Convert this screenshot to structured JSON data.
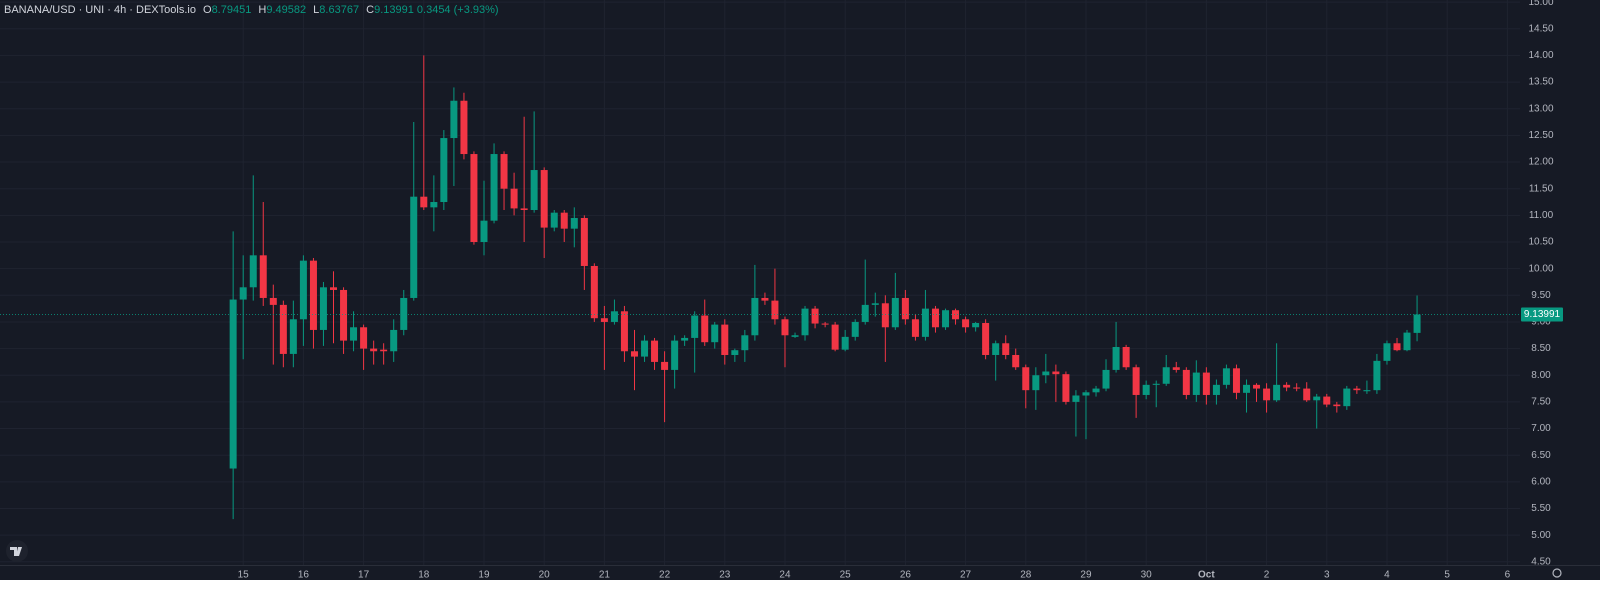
{
  "chart_data": {
    "type": "candlestick",
    "title": "BANANA/USD · UNI · 4h · DEXTools.io",
    "ohlc_letters": [
      "O",
      "H",
      "L",
      "C"
    ],
    "change": 0.3454,
    "change_percent_label": "(+3.93%)",
    "up_color": "#089981",
    "down_color": "#f23645",
    "grid": true,
    "xlim": [
      10.96,
      36.21
    ],
    "ylim": [
      4.44,
      15.04
    ],
    "xticks": [
      15,
      16,
      17,
      18,
      19,
      20,
      21,
      22,
      23,
      24,
      25,
      26,
      27,
      28,
      29,
      30,
      {
        "value": 31,
        "label": "Oct"
      },
      {
        "value": 32,
        "label": "2"
      },
      {
        "value": 33,
        "label": "3"
      },
      {
        "value": 34,
        "label": "4"
      },
      {
        "value": 35,
        "label": "5"
      },
      {
        "value": 36,
        "label": "6"
      }
    ],
    "yticks": [
      {
        "value": 4.5,
        "label": "4.50"
      },
      {
        "value": 5,
        "label": "5.00"
      },
      {
        "value": 5.5,
        "label": "5.50"
      },
      {
        "value": 6,
        "label": "6.00"
      },
      {
        "value": 6.5,
        "label": "6.50"
      },
      {
        "value": 7,
        "label": "7.00"
      },
      {
        "value": 7.5,
        "label": "7.50"
      },
      {
        "value": 8,
        "label": "8.00"
      },
      {
        "value": 8.5,
        "label": "8.50"
      },
      {
        "value": 9,
        "label": "9.00"
      },
      {
        "value": 9.5,
        "label": "9.50"
      },
      {
        "value": 10,
        "label": "10.00"
      },
      {
        "value": 10.5,
        "label": "10.50"
      },
      {
        "value": 11,
        "label": "11.00"
      },
      {
        "value": 11.5,
        "label": "11.50"
      },
      {
        "value": 12,
        "label": "12.00"
      },
      {
        "value": 12.5,
        "label": "12.50"
      },
      {
        "value": 13,
        "label": "13.00"
      },
      {
        "value": 13.5,
        "label": "13.50"
      },
      {
        "value": 14,
        "label": "14.00"
      },
      {
        "value": 14.5,
        "label": "14.50"
      },
      {
        "value": 15,
        "label": "15.00"
      }
    ],
    "x": [
      14.833,
      15,
      15.167,
      15.333,
      15.5,
      15.667,
      15.833,
      16,
      16.167,
      16.333,
      16.5,
      16.667,
      16.833,
      17,
      17.167,
      17.333,
      17.5,
      17.667,
      17.833,
      18,
      18.167,
      18.333,
      18.5,
      18.667,
      18.833,
      19,
      19.167,
      19.333,
      19.5,
      19.667,
      19.833,
      20,
      20.167,
      20.333,
      20.5,
      20.667,
      20.833,
      21,
      21.167,
      21.333,
      21.5,
      21.667,
      21.833,
      22,
      22.167,
      22.333,
      22.5,
      22.667,
      22.833,
      23,
      23.167,
      23.333,
      23.5,
      23.667,
      23.833,
      24,
      24.167,
      24.333,
      24.5,
      24.667,
      24.833,
      25,
      25.167,
      25.333,
      25.5,
      25.667,
      25.833,
      26,
      26.167,
      26.333,
      26.5,
      26.667,
      26.833,
      27,
      27.167,
      27.333,
      27.5,
      27.667,
      27.833,
      28,
      28.167,
      28.333,
      28.5,
      28.667,
      28.833,
      29,
      29.167,
      29.333,
      29.5,
      29.667,
      29.833,
      30,
      30.167,
      30.333,
      30.5,
      30.667,
      30.833,
      31,
      31.167,
      31.333,
      31.5,
      31.667,
      31.833,
      32,
      32.167,
      32.333,
      32.5,
      32.667,
      32.833,
      33,
      33.167,
      33.333,
      33.5,
      33.667,
      33.833,
      34,
      34.167,
      34.333,
      34.5
    ],
    "open": [
      6.25,
      9.42,
      9.65,
      10.25,
      9.45,
      9.32,
      8.4,
      9.05,
      10.15,
      8.85,
      9.65,
      9.6,
      8.65,
      8.9,
      8.5,
      8.48,
      8.45,
      8.85,
      9.45,
      11.35,
      11.15,
      11.25,
      12.45,
      13.15,
      12.15,
      10.5,
      10.9,
      12.15,
      11.5,
      11.13,
      11.1,
      11.85,
      10.77,
      11.05,
      10.75,
      10.95,
      10.05,
      9.07,
      9.0,
      9.2,
      8.45,
      8.35,
      8.65,
      8.25,
      8.1,
      8.65,
      8.7,
      9.12,
      8.62,
      8.95,
      8.38,
      8.47,
      8.75,
      9.45,
      9.4,
      9.05,
      8.72,
      8.75,
      9.25,
      8.97,
      8.95,
      8.48,
      8.72,
      9.0,
      9.32,
      9.35,
      8.9,
      9.45,
      9.05,
      8.72,
      9.25,
      8.9,
      9.22,
      9.05,
      8.9,
      8.98,
      8.38,
      8.6,
      8.38,
      8.15,
      7.72,
      8.0,
      8.07,
      8.02,
      7.5,
      7.62,
      7.68,
      7.75,
      8.1,
      8.53,
      8.15,
      7.63,
      7.82,
      7.84,
      8.15,
      8.1,
      7.63,
      8.05,
      7.63,
      7.82,
      8.13,
      7.67,
      7.82,
      7.75,
      7.53,
      7.82,
      7.77,
      7.75,
      7.53,
      7.6,
      7.45,
      7.42,
      7.75,
      7.7,
      7.72,
      8.27,
      8.6,
      8.47,
      8.79451
    ],
    "high": [
      10.7,
      10.25,
      11.75,
      11.25,
      9.7,
      9.4,
      9.4,
      10.25,
      10.2,
      9.75,
      9.95,
      9.65,
      9.2,
      8.95,
      8.65,
      8.6,
      9.05,
      9.6,
      12.75,
      14,
      11.75,
      12.6,
      13.4,
      13.3,
      12.2,
      11.65,
      12.35,
      12.2,
      11.8,
      12.85,
      12.95,
      11.9,
      11.1,
      11.1,
      11.15,
      11.0,
      10.1,
      9.3,
      9.42,
      9.3,
      8.85,
      8.75,
      8.7,
      8.45,
      8.75,
      8.75,
      9.2,
      9.42,
      9.0,
      9.05,
      8.5,
      8.85,
      10.07,
      9.55,
      10.0,
      9.1,
      8.8,
      9.3,
      9.3,
      9.0,
      9.0,
      8.85,
      9.05,
      10.17,
      9.55,
      9.5,
      9.92,
      9.6,
      9.15,
      9.6,
      9.3,
      9.25,
      9.25,
      9.1,
      9.0,
      9.05,
      8.65,
      8.75,
      8.5,
      8.2,
      8.15,
      8.4,
      8.2,
      8.07,
      7.72,
      7.72,
      7.8,
      8.3,
      9.0,
      8.57,
      8.2,
      7.9,
      7.9,
      8.38,
      8.25,
      8.15,
      8.28,
      8.15,
      7.92,
      8.2,
      8.2,
      7.92,
      7.85,
      7.85,
      8.6,
      7.87,
      7.85,
      7.87,
      7.65,
      7.65,
      7.5,
      7.8,
      7.8,
      7.9,
      8.4,
      8.65,
      8.7,
      8.85,
      9.49582
    ],
    "low": [
      5.3,
      8.3,
      9.4,
      9.3,
      8.2,
      8.15,
      8.15,
      8.55,
      8.5,
      8.55,
      8.6,
      8.4,
      8.45,
      8.1,
      8.2,
      8.2,
      8.25,
      8.75,
      9.4,
      11.1,
      10.7,
      11.1,
      11.55,
      12.05,
      10.45,
      10.25,
      10.85,
      11.1,
      11.0,
      10.5,
      11.05,
      10.2,
      10.7,
      10.5,
      10.4,
      9.6,
      9.0,
      8.1,
      8.95,
      8.25,
      7.72,
      8.25,
      8.1,
      7.12,
      7.75,
      8.55,
      8.05,
      8.55,
      8.5,
      8.2,
      8.25,
      8.25,
      8.65,
      9.32,
      8.95,
      8.15,
      8.7,
      8.65,
      8.88,
      8.9,
      8.45,
      8.45,
      8.65,
      8.95,
      9.1,
      8.25,
      8.85,
      8.95,
      8.65,
      8.65,
      8.8,
      8.85,
      8.95,
      8.8,
      8.82,
      8.3,
      7.9,
      8.3,
      8.1,
      7.38,
      7.35,
      7.85,
      7.5,
      7.45,
      6.85,
      6.8,
      7.6,
      7.7,
      8.05,
      8.1,
      7.2,
      7.55,
      7.4,
      7.8,
      8.05,
      7.55,
      7.5,
      7.45,
      7.45,
      7.75,
      7.55,
      7.3,
      7.5,
      7.3,
      7.5,
      7.7,
      7.7,
      7.5,
      7.0,
      7.4,
      7.3,
      7.35,
      7.65,
      7.65,
      7.65,
      8.2,
      8.45,
      8.45,
      8.63767
    ],
    "close": [
      9.42,
      9.65,
      10.25,
      9.45,
      9.32,
      8.4,
      9.05,
      10.15,
      8.85,
      9.65,
      9.6,
      8.65,
      8.9,
      8.5,
      8.45,
      8.45,
      8.85,
      9.45,
      11.35,
      11.15,
      11.25,
      12.45,
      13.15,
      12.15,
      10.5,
      10.9,
      12.15,
      11.5,
      11.13,
      11.1,
      11.85,
      10.77,
      11.05,
      10.75,
      10.95,
      10.05,
      9.07,
      9.0,
      9.2,
      8.45,
      8.35,
      8.65,
      8.25,
      8.1,
      8.65,
      8.7,
      9.12,
      8.62,
      8.95,
      8.38,
      8.47,
      8.75,
      9.45,
      9.4,
      9.05,
      8.75,
      8.75,
      9.25,
      8.97,
      8.95,
      8.48,
      8.72,
      9.0,
      9.32,
      9.35,
      8.9,
      9.45,
      9.05,
      8.72,
      9.25,
      8.9,
      9.22,
      9.05,
      8.9,
      8.98,
      8.38,
      8.6,
      8.38,
      8.15,
      7.72,
      8.0,
      8.07,
      8.02,
      7.5,
      7.62,
      7.68,
      7.75,
      8.1,
      8.53,
      8.15,
      7.63,
      7.82,
      7.84,
      8.15,
      8.1,
      7.63,
      8.05,
      7.63,
      7.82,
      8.13,
      7.67,
      7.82,
      7.75,
      7.53,
      7.82,
      7.77,
      7.75,
      7.53,
      7.6,
      7.45,
      7.42,
      7.75,
      7.72,
      7.72,
      8.27,
      8.6,
      8.47,
      8.8,
      9.13991
    ]
  }
}
